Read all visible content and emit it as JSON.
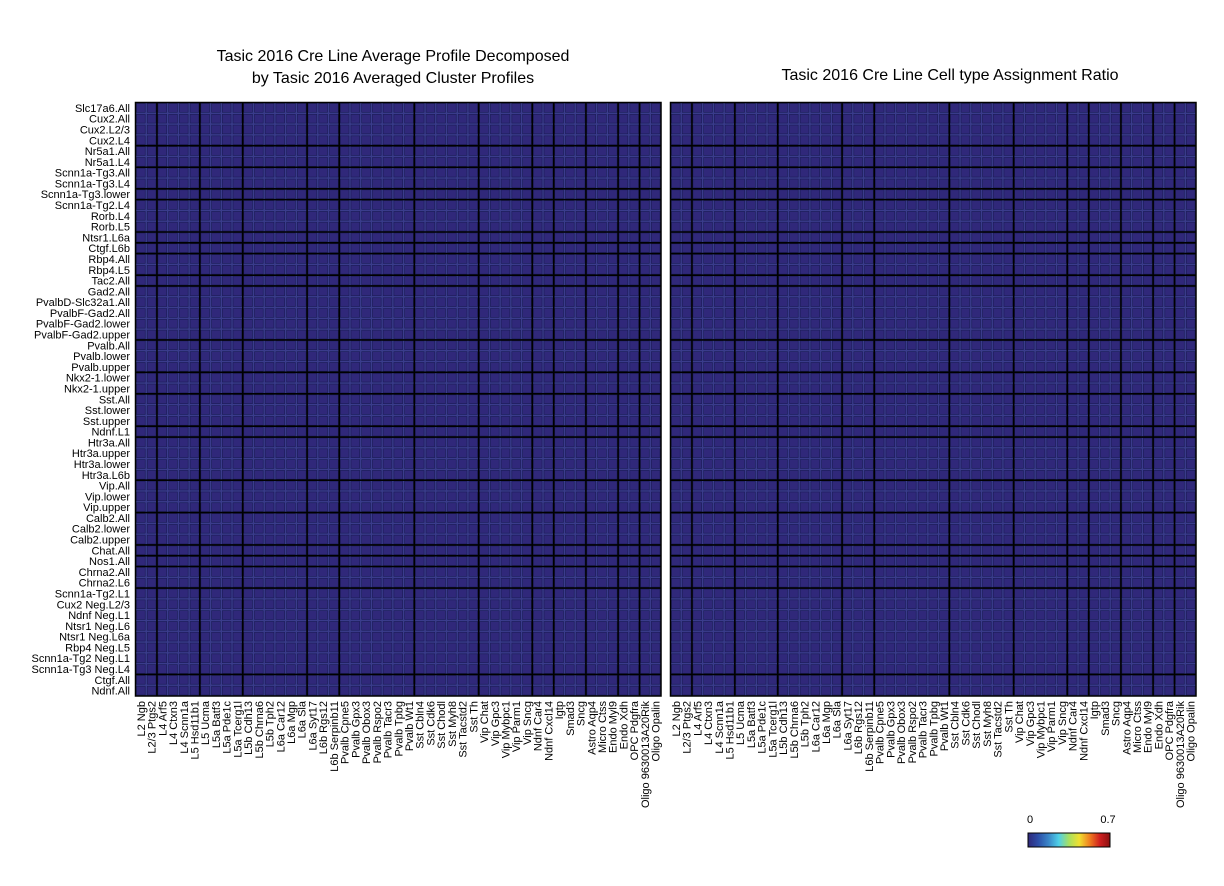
{
  "chart_data": [
    {
      "type": "heatmap",
      "title_line1": "Tasic 2016 Cre Line Average Profile Decomposed",
      "title_line2": "by Tasic 2016 Averaged Cluster Profiles",
      "matrix_ref": "shared"
    },
    {
      "type": "heatmap",
      "title_line1": "Tasic 2016 Cre Line Cell type Assignment Ratio",
      "title_line2": "",
      "matrix_ref": "shared"
    }
  ],
  "shared": {
    "rows": [
      "Slc17a6.All",
      "Cux2.All",
      "Cux2.L2/3",
      "Cux2.L4",
      "Nr5a1.All",
      "Nr5a1.L4",
      "Scnn1a-Tg3.All",
      "Scnn1a-Tg3.L4",
      "Scnn1a-Tg3.lower",
      "Scnn1a-Tg2.L4",
      "Rorb.L4",
      "Rorb.L5",
      "Ntsr1.L6a",
      "Ctgf.L6b",
      "Rbp4.All",
      "Rbp4.L5",
      "Tac2.All",
      "Gad2.All",
      "PvalbD-Slc32a1.All",
      "PvalbF-Gad2.All",
      "PvalbF-Gad2.lower",
      "PvalbF-Gad2.upper",
      "Pvalb.All",
      "Pvalb.lower",
      "Pvalb.upper",
      "Nkx2-1.lower",
      "Nkx2-1.upper",
      "Sst.All",
      "Sst.lower",
      "Sst.upper",
      "Ndnf.L1",
      "Htr3a.All",
      "Htr3a.upper",
      "Htr3a.lower",
      "Htr3a.L6b",
      "Vip.All",
      "Vip.lower",
      "Vip.upper",
      "Calb2.All",
      "Calb2.lower",
      "Calb2.upper",
      "Chat.All",
      "Nos1.All",
      "Chrna2.All",
      "Chrna2.L6",
      "Scnn1a-Tg2.L1",
      "Cux2 Neg.L2/3",
      "Ndnf Neg.L1",
      "Ntsr1 Neg.L6",
      "Ntsr1 Neg.L6a",
      "Rbp4 Neg.L5",
      "Scnn1a-Tg2 Neg.L1",
      "Scnn1a-Tg3 Neg.L4",
      "Ctgf.All",
      "Ndnf.All"
    ],
    "columns": [
      "L2 Ngb",
      "L2/3 Ptgs2",
      "L4 Arf5",
      "L4 Ctxn3",
      "L4 Scnn1a",
      "L5 Hsd11b1",
      "L5 Ucma",
      "L5a Batf3",
      "L5a Pde1c",
      "L5a Tcerg1l",
      "L5b Cdh13",
      "L5b Chrna6",
      "L5b Tph2",
      "L6a Car12",
      "L6a Mgp",
      "L6a Sla",
      "L6a Syt17",
      "L6b Rgs12",
      "L6b Serpinb11",
      "Pvalb Cpne5",
      "Pvalb Gpx3",
      "Pvalb Obox3",
      "Pvalb Rspo2",
      "Pvalb Tacr3",
      "Pvalb Tpbg",
      "Pvalb Wt1",
      "Sst Cbln4",
      "Sst Cdk6",
      "Sst Chodl",
      "Sst Myh8",
      "Sst Tacstd2",
      "Sst Th",
      "Vip Chat",
      "Vip Gpc3",
      "Vip Mybpc1",
      "Vip Parm1",
      "Vip Sncg",
      "Ndnf Car4",
      "Ndnf Cxcl14",
      "Igtp",
      "Smad3",
      "Sncg",
      "Astro Aqp4",
      "Micro Ctss",
      "Endo Myl9",
      "Endo Xdh",
      "OPC Pdgfra",
      "Oligo 9630013A20Rik",
      "Oligo Opalin"
    ],
    "row_groups": [
      4,
      6,
      8,
      9,
      12,
      13,
      14,
      16,
      17,
      22,
      25,
      27,
      30,
      31,
      35,
      38,
      41,
      42,
      43,
      45,
      53
    ],
    "col_groups": [
      2,
      6,
      10,
      16,
      19,
      26,
      32,
      37,
      39,
      42,
      45,
      47
    ],
    "colorbar": {
      "min_label": "0",
      "max_label": "0.7",
      "min": 0,
      "max": 0.7,
      "colors": [
        "#30287a",
        "#2d4fa8",
        "#3a86c8",
        "#4fd0e8",
        "#a8e060",
        "#f0e030",
        "#f08020",
        "#d02020",
        "#8a1010"
      ]
    },
    "background_color": "#3a3c8c"
  }
}
